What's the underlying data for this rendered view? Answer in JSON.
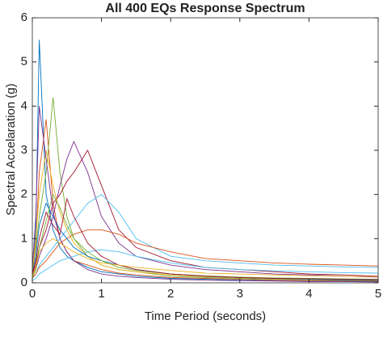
{
  "chart_data": {
    "type": "line",
    "title": "All 400 EQs Response Spectrum",
    "x_label": "Time Period (seconds)",
    "y_label": "Spectral Accelaration (g)",
    "x": [
      0,
      0.05,
      0.1,
      0.2,
      0.3,
      0.4,
      0.5,
      0.6,
      0.8,
      1.0,
      1.25,
      1.5,
      2,
      2.5,
      3,
      3.5,
      4,
      4.5,
      5
    ],
    "xlim": [
      0,
      5
    ],
    "xticks": [
      0,
      1,
      2,
      3,
      4,
      5
    ],
    "ylim": [
      0,
      6
    ],
    "yticks": [
      0,
      1,
      2,
      3,
      4,
      5,
      6
    ],
    "series": [
      {
        "color": "#0072BD",
        "values": [
          0.3,
          1.2,
          5.5,
          2.0,
          1.2,
          0.8,
          0.6,
          0.5,
          0.35,
          0.25,
          0.2,
          0.15,
          0.1,
          0.08,
          0.06,
          0.05,
          0.04,
          0.04,
          0.03
        ]
      },
      {
        "color": "#D95319",
        "values": [
          0.2,
          0.9,
          2.5,
          3.7,
          1.8,
          1.0,
          0.7,
          0.5,
          0.4,
          0.3,
          0.22,
          0.18,
          0.12,
          0.1,
          0.08,
          0.06,
          0.05,
          0.05,
          0.04
        ]
      },
      {
        "color": "#77AC30",
        "values": [
          0.25,
          0.8,
          1.5,
          2.5,
          4.2,
          2.5,
          1.5,
          1.0,
          0.6,
          0.4,
          0.3,
          0.25,
          0.15,
          0.12,
          0.1,
          0.08,
          0.07,
          0.06,
          0.05
        ]
      },
      {
        "color": "#7E2F8E",
        "values": [
          0.15,
          0.3,
          0.6,
          1.0,
          1.5,
          2.2,
          2.8,
          3.2,
          2.5,
          1.5,
          0.9,
          0.6,
          0.4,
          0.3,
          0.25,
          0.2,
          0.18,
          0.15,
          0.13
        ]
      },
      {
        "color": "#A2142F",
        "values": [
          0.2,
          0.4,
          0.8,
          1.2,
          1.8,
          2.0,
          2.3,
          2.5,
          3.0,
          2.2,
          1.2,
          0.8,
          0.5,
          0.35,
          0.3,
          0.25,
          0.2,
          0.18,
          0.15
        ]
      },
      {
        "color": "#4DBEEE",
        "values": [
          0.1,
          0.2,
          0.4,
          0.6,
          0.8,
          1.0,
          1.2,
          1.4,
          1.8,
          2.0,
          1.6,
          1.0,
          0.6,
          0.5,
          0.45,
          0.4,
          0.38,
          0.36,
          0.35
        ]
      },
      {
        "color": "#EDB120",
        "values": [
          0.3,
          1.0,
          2.0,
          3.0,
          2.2,
          1.6,
          1.2,
          0.9,
          0.6,
          0.4,
          0.3,
          0.25,
          0.18,
          0.14,
          0.12,
          0.1,
          0.09,
          0.08,
          0.07
        ]
      },
      {
        "color": "#D95319",
        "values": [
          0.1,
          0.2,
          0.35,
          0.5,
          0.7,
          0.9,
          1.0,
          1.1,
          1.2,
          1.2,
          1.1,
          0.9,
          0.7,
          0.55,
          0.5,
          0.45,
          0.42,
          0.4,
          0.38
        ]
      },
      {
        "color": "#0072BD",
        "values": [
          0.2,
          0.6,
          1.3,
          1.8,
          1.5,
          1.2,
          1.0,
          0.8,
          0.6,
          0.5,
          0.4,
          0.3,
          0.2,
          0.15,
          0.12,
          0.1,
          0.08,
          0.07,
          0.06
        ]
      },
      {
        "color": "#77AC30",
        "values": [
          0.1,
          0.3,
          0.8,
          1.4,
          2.0,
          1.7,
          1.3,
          1.0,
          0.7,
          0.5,
          0.35,
          0.28,
          0.2,
          0.16,
          0.13,
          0.11,
          0.1,
          0.09,
          0.08
        ]
      },
      {
        "color": "#7E2F8E",
        "values": [
          0.35,
          1.5,
          4.0,
          2.8,
          1.6,
          1.0,
          0.7,
          0.5,
          0.3,
          0.2,
          0.15,
          0.12,
          0.08,
          0.06,
          0.05,
          0.04,
          0.03,
          0.03,
          0.02
        ]
      },
      {
        "color": "#4DBEEE",
        "values": [
          0.05,
          0.1,
          0.2,
          0.3,
          0.4,
          0.5,
          0.55,
          0.6,
          0.7,
          0.75,
          0.7,
          0.6,
          0.45,
          0.35,
          0.3,
          0.27,
          0.25,
          0.23,
          0.22
        ]
      },
      {
        "color": "#A2142F",
        "values": [
          0.2,
          0.5,
          1.0,
          1.6,
          1.3,
          1.1,
          1.9,
          1.5,
          0.9,
          0.6,
          0.4,
          0.3,
          0.2,
          0.15,
          0.12,
          0.1,
          0.09,
          0.08,
          0.07
        ]
      },
      {
        "color": "#EDB120",
        "values": [
          0.15,
          0.35,
          0.7,
          0.9,
          1.0,
          0.9,
          0.8,
          0.7,
          0.55,
          0.45,
          0.4,
          0.35,
          0.28,
          0.22,
          0.2,
          0.18,
          0.16,
          0.15,
          0.14
        ]
      }
    ]
  }
}
